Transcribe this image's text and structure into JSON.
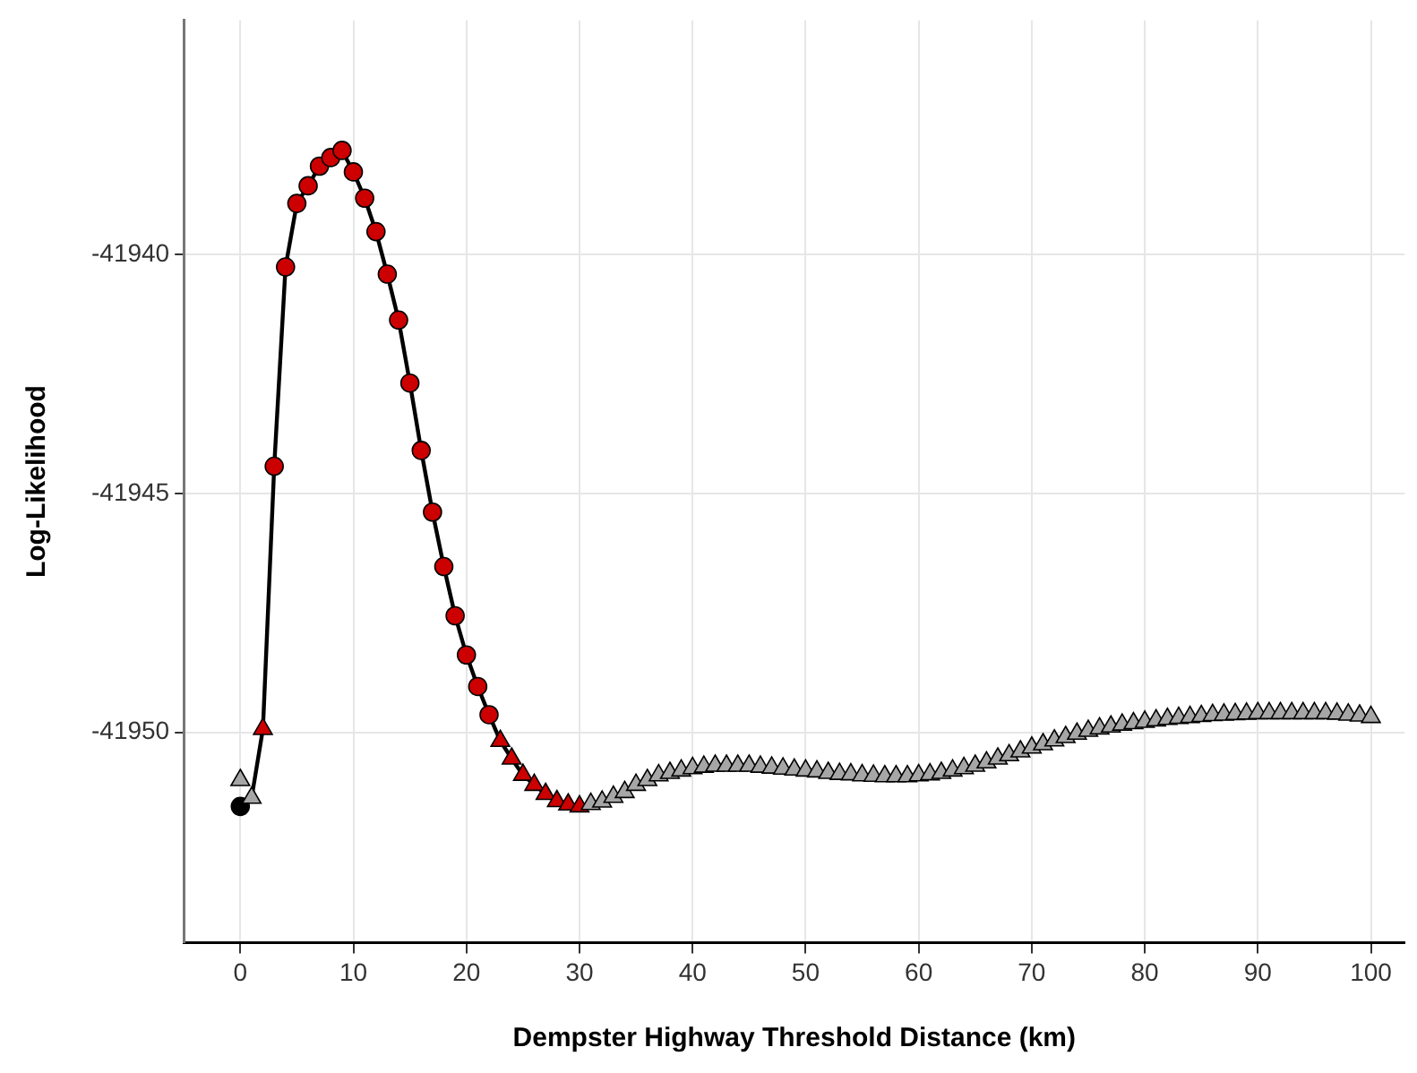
{
  "chart_data": {
    "type": "scatter",
    "xlabel": "Dempster Highway Threshold Distance (km)",
    "ylabel": "Log-Likelihood",
    "xlim": [
      -5,
      103
    ],
    "xticks": [
      0,
      10,
      20,
      30,
      40,
      50,
      60,
      70,
      80,
      90,
      100
    ],
    "ylim": [
      -41954.4,
      -41935.1
    ],
    "yticks": [
      -41950,
      -41945,
      -41940
    ],
    "grid": true,
    "legend": false,
    "series": [
      {
        "type": "line",
        "color": "#000000",
        "marker": "none",
        "line_style": "solid",
        "x": [
          0,
          1,
          2,
          3,
          4,
          5,
          6,
          7,
          8,
          9,
          10,
          11,
          12,
          13,
          14,
          15,
          16,
          17,
          18,
          19,
          20,
          21,
          22,
          23,
          24,
          25,
          26,
          27,
          28,
          29,
          30,
          31,
          32,
          33,
          34,
          35,
          36,
          37,
          38,
          39,
          40,
          41,
          42,
          43,
          44,
          45,
          46,
          47,
          48,
          49,
          50,
          51,
          52,
          53,
          54,
          55,
          56,
          57,
          58,
          59,
          60,
          61,
          62,
          63,
          64,
          65,
          66,
          67,
          68,
          69,
          70,
          71,
          72,
          73,
          74,
          75,
          76,
          77,
          78,
          79,
          80,
          81,
          82,
          83,
          84,
          85,
          86,
          87,
          88,
          89,
          90,
          91,
          92,
          93,
          94,
          95,
          96,
          97,
          98,
          99,
          100
        ],
        "values": [
          -41951.55,
          -41951.37,
          -41949.93,
          -41944.43,
          -41940.26,
          -41938.93,
          -41938.56,
          -41938.15,
          -41937.97,
          -41937.82,
          -41938.27,
          -41938.82,
          -41939.52,
          -41940.41,
          -41941.37,
          -41942.69,
          -41944.1,
          -41945.39,
          -41946.53,
          -41947.56,
          -41948.38,
          -41949.04,
          -41949.63,
          -41950.18,
          -41950.55,
          -41950.89,
          -41951.1,
          -41951.29,
          -41951.44,
          -41951.51,
          -41951.55,
          -41951.5,
          -41951.45,
          -41951.35,
          -41951.25,
          -41951.1,
          -41951.0,
          -41950.9,
          -41950.85,
          -41950.8,
          -41950.75,
          -41950.72,
          -41950.7,
          -41950.7,
          -41950.7,
          -41950.7,
          -41950.72,
          -41950.74,
          -41950.76,
          -41950.78,
          -41950.8,
          -41950.82,
          -41950.85,
          -41950.87,
          -41950.88,
          -41950.9,
          -41950.91,
          -41950.92,
          -41950.92,
          -41950.92,
          -41950.9,
          -41950.88,
          -41950.85,
          -41950.8,
          -41950.75,
          -41950.7,
          -41950.63,
          -41950.55,
          -41950.48,
          -41950.4,
          -41950.32,
          -41950.25,
          -41950.17,
          -41950.1,
          -41950.03,
          -41949.97,
          -41949.92,
          -41949.88,
          -41949.84,
          -41949.81,
          -41949.78,
          -41949.75,
          -41949.72,
          -41949.7,
          -41949.68,
          -41949.66,
          -41949.64,
          -41949.63,
          -41949.62,
          -41949.61,
          -41949.6,
          -41949.6,
          -41949.6,
          -41949.6,
          -41949.6,
          -41949.6,
          -41949.6,
          -41949.61,
          -41949.63,
          -41949.65,
          -41949.68
        ]
      },
      {
        "type": "scatter",
        "color": "#a6a6a6",
        "marker": "triangle",
        "x": [
          0,
          1,
          31,
          32,
          33,
          34,
          35,
          36,
          37,
          38,
          39,
          40,
          41,
          42,
          43,
          44,
          45,
          46,
          47,
          48,
          49,
          50,
          51,
          52,
          53,
          54,
          55,
          56,
          57,
          58,
          59,
          60,
          61,
          62,
          63,
          64,
          65,
          66,
          67,
          68,
          69,
          70,
          71,
          72,
          73,
          74,
          75,
          76,
          77,
          78,
          79,
          80,
          81,
          82,
          83,
          84,
          85,
          86,
          87,
          88,
          89,
          90,
          91,
          92,
          93,
          94,
          95,
          96,
          97,
          98,
          99,
          100
        ],
        "values": [
          -41951.0,
          -41951.37,
          -41951.5,
          -41951.45,
          -41951.35,
          -41951.25,
          -41951.1,
          -41951.0,
          -41950.9,
          -41950.85,
          -41950.8,
          -41950.75,
          -41950.72,
          -41950.7,
          -41950.7,
          -41950.7,
          -41950.7,
          -41950.72,
          -41950.74,
          -41950.76,
          -41950.78,
          -41950.8,
          -41950.82,
          -41950.85,
          -41950.87,
          -41950.88,
          -41950.9,
          -41950.91,
          -41950.92,
          -41950.92,
          -41950.92,
          -41950.9,
          -41950.88,
          -41950.85,
          -41950.8,
          -41950.75,
          -41950.7,
          -41950.63,
          -41950.55,
          -41950.48,
          -41950.4,
          -41950.32,
          -41950.25,
          -41950.17,
          -41950.1,
          -41950.03,
          -41949.97,
          -41949.92,
          -41949.88,
          -41949.84,
          -41949.81,
          -41949.78,
          -41949.75,
          -41949.72,
          -41949.7,
          -41949.68,
          -41949.66,
          -41949.64,
          -41949.63,
          -41949.62,
          -41949.61,
          -41949.6,
          -41949.6,
          -41949.6,
          -41949.6,
          -41949.6,
          -41949.6,
          -41949.6,
          -41949.61,
          -41949.63,
          -41949.65,
          -41949.68
        ]
      },
      {
        "type": "scatter",
        "color": "#cc0000",
        "marker": "triangle",
        "x": [
          2,
          23,
          24,
          25,
          26,
          27,
          28,
          29,
          30
        ],
        "values": [
          -41949.93,
          -41950.18,
          -41950.55,
          -41950.89,
          -41951.1,
          -41951.29,
          -41951.44,
          -41951.51,
          -41951.55
        ]
      },
      {
        "type": "scatter",
        "color": "#cc0000",
        "marker": "circle",
        "x": [
          3,
          4,
          5,
          6,
          7,
          8,
          9,
          10,
          11,
          12,
          13,
          14,
          15,
          16,
          17,
          18,
          19,
          20,
          21,
          22
        ],
        "values": [
          -41944.43,
          -41940.26,
          -41938.93,
          -41938.56,
          -41938.15,
          -41937.97,
          -41937.82,
          -41938.27,
          -41938.82,
          -41939.52,
          -41940.41,
          -41941.37,
          -41942.69,
          -41944.1,
          -41945.39,
          -41946.53,
          -41947.56,
          -41948.38,
          -41949.04,
          -41949.63
        ]
      },
      {
        "type": "scatter",
        "color": "#000000",
        "marker": "circle",
        "x": [
          0
        ],
        "values": [
          -41951.55
        ]
      }
    ]
  }
}
